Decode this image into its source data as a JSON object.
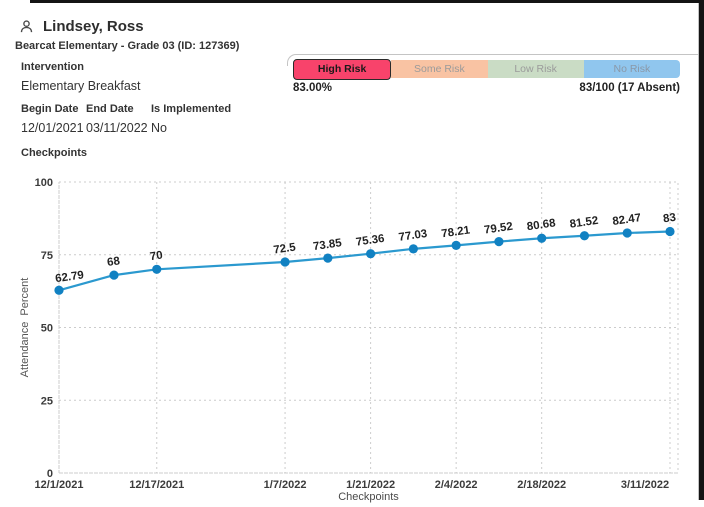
{
  "header": {
    "student_name": "Lindsey, Ross",
    "subtitle": "Bearcat Elementary - Grade 03 (ID: 127369)"
  },
  "intervention": {
    "label": "Intervention",
    "name": "Elementary Breakfast",
    "begin_date_label": "Begin Date",
    "begin_date": "12/01/2021",
    "end_date_label": "End Date",
    "end_date": "03/11/2022",
    "is_implemented_label": "Is Implemented",
    "is_implemented": "No",
    "checkpoints_label": "Checkpoints"
  },
  "risk": {
    "segments": [
      {
        "label": "High Risk",
        "color": "#f8436b",
        "text_color": "#1a1a1a",
        "active": true
      },
      {
        "label": "Some Risk",
        "color": "#f9c3a3",
        "text_color": "#9b9b9b",
        "active": false
      },
      {
        "label": "Low Risk",
        "color": "#cadcc5",
        "text_color": "#9b9b9b",
        "active": false
      },
      {
        "label": "No Risk",
        "color": "#90c6ee",
        "text_color": "#8a98a8",
        "active": false
      }
    ],
    "percent_label": "83.00%",
    "score_label": "83/100 (17 Absent)"
  },
  "icons": {
    "header_icon": "person-icon"
  },
  "chart_data": {
    "type": "line",
    "title": "",
    "xlabel": "Checkpoints",
    "ylabel": "Attendance Percent",
    "ylim": [
      0,
      100
    ],
    "y_ticks": [
      0,
      25,
      50,
      75,
      100
    ],
    "x_tick_labels": [
      "12/1/2021",
      "12/17/2021",
      "1/7/2022",
      "1/21/2022",
      "2/4/2022",
      "2/18/2022",
      "3/11/2022"
    ],
    "x_tick_days": [
      0,
      16,
      37,
      51,
      65,
      79,
      100
    ],
    "x_range_days": [
      0,
      100
    ],
    "grid": "dotted",
    "legend": "none",
    "line_color": "#2b99cf",
    "point_color": "#1181c2",
    "grid_color": "#cccccc",
    "series": [
      {
        "name": "Attendance Percent",
        "x_days": [
          0,
          9,
          16,
          37,
          44,
          51,
          58,
          65,
          72,
          79,
          86,
          93,
          100
        ],
        "values": [
          62.79,
          68,
          70,
          72.5,
          73.85,
          75.36,
          77.03,
          78.21,
          79.52,
          80.68,
          81.52,
          82.47,
          83
        ],
        "point_labels": [
          "62.79",
          "68",
          "70",
          "72.5",
          "73.85",
          "75.36",
          "77.03",
          "78.21",
          "79.52",
          "80.68",
          "81.52",
          "82.47",
          "83"
        ]
      }
    ]
  }
}
